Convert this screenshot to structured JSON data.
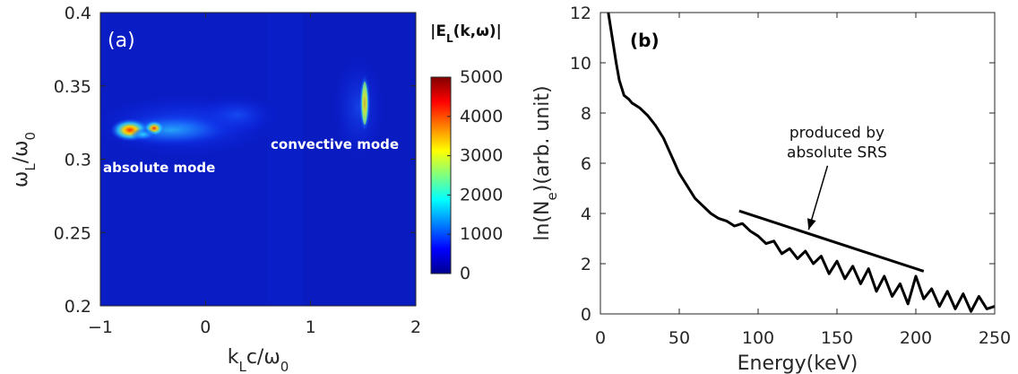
{
  "chart_data": [
    {
      "type": "heatmap",
      "panel_label": "(a)",
      "xlabel": "k_L c/ω_0",
      "ylabel": "ω_L/ω_0",
      "xlim": [
        -1,
        2
      ],
      "ylim": [
        0.2,
        0.4
      ],
      "xticks": [
        "−1",
        "0",
        "1",
        "2"
      ],
      "yticks": [
        "0.2",
        "0.25",
        "0.3",
        "0.35",
        "0.4"
      ],
      "colorbar": {
        "title": "|E_L(k,ω)|",
        "range": [
          0,
          5000
        ],
        "ticks": [
          "0",
          "1000",
          "2000",
          "3000",
          "4000",
          "5000"
        ],
        "colormap": "jet"
      },
      "annotations": [
        {
          "text": "absolute mode",
          "x": -0.6,
          "y": 0.305
        },
        {
          "text": "convective mode",
          "x": 1.05,
          "y": 0.318
        }
      ],
      "features": [
        {
          "name": "absolute mode band",
          "x_range": [
            -0.9,
            0.6
          ],
          "omega": 0.322,
          "peak_k": -0.7,
          "peak_value": 5000
        },
        {
          "name": "convective mode ridge",
          "k": 1.52,
          "omega_range": [
            0.31,
            0.355
          ],
          "peak_value": 2800
        }
      ]
    },
    {
      "type": "line",
      "panel_label": "(b)",
      "xlabel": "Energy(keV)",
      "ylabel": "ln(N_e)(arb. unit)",
      "xlim": [
        0,
        250
      ],
      "ylim": [
        0,
        12
      ],
      "xticks": [
        "0",
        "50",
        "100",
        "150",
        "200",
        "250"
      ],
      "yticks": [
        "0",
        "2",
        "4",
        "6",
        "8",
        "10",
        "12"
      ],
      "series": [
        {
          "x": [
            5,
            8,
            10,
            12,
            15,
            18,
            20,
            25,
            30,
            35,
            40,
            45,
            50,
            55,
            60,
            65,
            70,
            75,
            80,
            85,
            90,
            95,
            100,
            105,
            110,
            115,
            120,
            125,
            130,
            135,
            140,
            145,
            150,
            155,
            160,
            165,
            170,
            175,
            180,
            185,
            190,
            195,
            200,
            205,
            210,
            215,
            220,
            225,
            230,
            235,
            240,
            245,
            250
          ],
          "y": [
            12,
            10.8,
            10.0,
            9.3,
            8.7,
            8.55,
            8.4,
            8.2,
            7.9,
            7.5,
            7.0,
            6.3,
            5.6,
            5.1,
            4.6,
            4.3,
            4.0,
            3.8,
            3.7,
            3.5,
            3.6,
            3.3,
            3.1,
            2.8,
            2.9,
            2.4,
            2.6,
            2.2,
            2.5,
            2.0,
            2.3,
            1.6,
            2.1,
            1.4,
            1.9,
            1.2,
            1.8,
            0.9,
            1.5,
            0.7,
            1.2,
            0.4,
            1.5,
            0.6,
            1.0,
            0.3,
            0.9,
            0.2,
            0.8,
            0.1,
            0.7,
            0.2,
            0.3
          ]
        }
      ],
      "fit_line": {
        "x": [
          88,
          205
        ],
        "y": [
          4.1,
          1.7
        ]
      },
      "annotation": {
        "text": [
          "produced by",
          "absolute SRS"
        ],
        "x": 150,
        "y": 6.3,
        "arrow_to": [
          132,
          3.35
        ]
      }
    }
  ]
}
